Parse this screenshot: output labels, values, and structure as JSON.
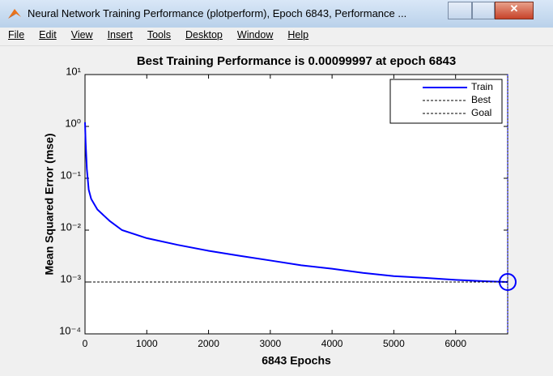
{
  "window": {
    "title": "Neural Network Training Performance (plotperform), Epoch 6843, Performance ...",
    "menu": [
      "File",
      "Edit",
      "View",
      "Insert",
      "Tools",
      "Desktop",
      "Window",
      "Help"
    ]
  },
  "chart_data": {
    "type": "line",
    "title": "Best Training Performance is 0.00099997 at epoch 6843",
    "xlabel": "6843 Epochs",
    "ylabel": "Mean Squared Error  (mse)",
    "xlim": [
      0,
      6843
    ],
    "xticks": [
      0,
      1000,
      2000,
      3000,
      4000,
      5000,
      6000
    ],
    "ylim": [
      0.0001,
      10
    ],
    "yscale": "log",
    "yticks": [
      {
        "value": 0.0001,
        "label": "10⁻⁴"
      },
      {
        "value": 0.001,
        "label": "10⁻³"
      },
      {
        "value": 0.01,
        "label": "10⁻²"
      },
      {
        "value": 0.1,
        "label": "10⁻¹"
      },
      {
        "value": 1,
        "label": "10⁰"
      },
      {
        "value": 10,
        "label": "10¹"
      }
    ],
    "legend": "upper right",
    "series": [
      {
        "name": "Train",
        "color": "#0000ff",
        "style": "solid",
        "x": [
          0,
          10,
          30,
          60,
          100,
          200,
          400,
          600,
          1000,
          1500,
          2000,
          2500,
          3000,
          3500,
          4000,
          4500,
          5000,
          5500,
          6000,
          6500,
          6843
        ],
        "values": [
          1.2,
          0.5,
          0.15,
          0.06,
          0.04,
          0.025,
          0.015,
          0.01,
          0.007,
          0.0052,
          0.004,
          0.0032,
          0.0026,
          0.0021,
          0.0018,
          0.0015,
          0.0013,
          0.0012,
          0.0011,
          0.00103,
          0.00099997
        ]
      },
      {
        "name": "Best",
        "color": "#0000ff",
        "style": "dashed",
        "marker": "circle",
        "x": [
          6843
        ],
        "values": [
          0.00099997
        ]
      },
      {
        "name": "Goal",
        "color": "#000000",
        "style": "dashed",
        "x": [
          0,
          6843
        ],
        "values": [
          0.001,
          0.001
        ]
      }
    ]
  }
}
